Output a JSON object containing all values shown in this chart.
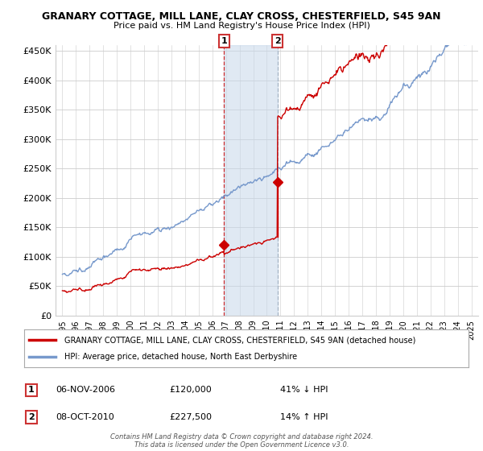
{
  "title1": "GRANARY COTTAGE, MILL LANE, CLAY CROSS, CHESTERFIELD, S45 9AN",
  "title2": "Price paid vs. HM Land Registry's House Price Index (HPI)",
  "ylabel_ticks": [
    "£0",
    "£50K",
    "£100K",
    "£150K",
    "£200K",
    "£250K",
    "£300K",
    "£350K",
    "£400K",
    "£450K"
  ],
  "ylabel_values": [
    0,
    50000,
    100000,
    150000,
    200000,
    250000,
    300000,
    350000,
    400000,
    450000
  ],
  "ylim": [
    0,
    460000
  ],
  "xlim_start": 1994.5,
  "xlim_end": 2025.5,
  "sale1_x": 2006.85,
  "sale1_y": 120000,
  "sale1_label": "1",
  "sale1_date": "06-NOV-2006",
  "sale1_price": "£120,000",
  "sale1_hpi": "41% ↓ HPI",
  "sale2_x": 2010.77,
  "sale2_y": 227500,
  "sale2_label": "2",
  "sale2_date": "08-OCT-2010",
  "sale2_price": "£227,500",
  "sale2_hpi": "14% ↑ HPI",
  "line_color_property": "#cc0000",
  "line_color_hpi": "#7799cc",
  "vline1_color": "#cc0000",
  "vline2_color": "#99aabb",
  "shade_color": "#c8d8ea",
  "legend_label_property": "GRANARY COTTAGE, MILL LANE, CLAY CROSS, CHESTERFIELD, S45 9AN (detached house)",
  "legend_label_hpi": "HPI: Average price, detached house, North East Derbyshire",
  "footnote": "Contains HM Land Registry data © Crown copyright and database right 2024.\nThis data is licensed under the Open Government Licence v3.0.",
  "background_color": "#ffffff",
  "grid_color": "#cccccc"
}
